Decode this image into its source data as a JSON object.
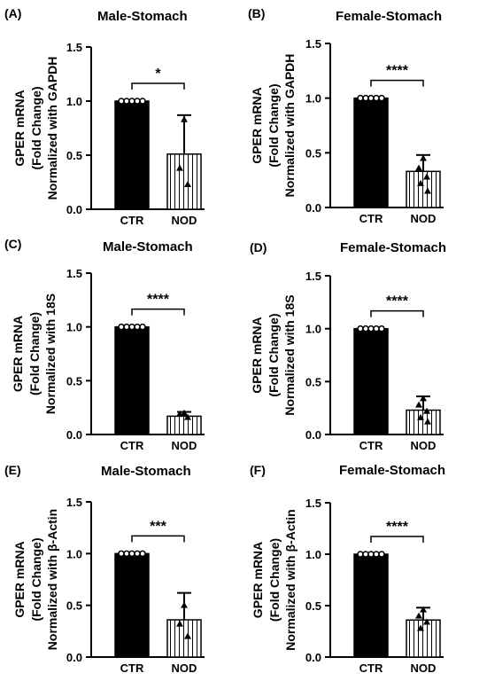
{
  "chart_data": [
    {
      "type": "bar",
      "panel": "(A)",
      "title": "Male-Stomach",
      "ylabel": [
        "GPER mRNA",
        "(Fold Change)",
        "Normalized with GAPDH"
      ],
      "categories": [
        "CTR",
        "NOD"
      ],
      "values": [
        1.0,
        0.51
      ],
      "error": [
        0.0,
        0.36
      ],
      "points": [
        [
          1.0,
          1.0,
          1.0,
          1.0,
          1.0
        ],
        [
          0.83,
          0.38,
          0.23
        ]
      ],
      "significance": "*",
      "ylim": [
        0,
        1.5
      ],
      "yticks": [
        "0.0",
        "0.5",
        "1.0",
        "1.5"
      ]
    },
    {
      "type": "bar",
      "panel": "(B)",
      "title": "Female-Stomach",
      "ylabel": [
        "GPER mRNA",
        "(Fold Change)",
        "Normalized with GAPDH"
      ],
      "categories": [
        "CTR",
        "NOD"
      ],
      "values": [
        1.0,
        0.33
      ],
      "error": [
        0.0,
        0.15
      ],
      "points": [
        [
          1.0,
          1.0,
          1.0,
          1.0,
          1.0
        ],
        [
          0.45,
          0.36,
          0.28,
          0.22,
          0.15
        ]
      ],
      "significance": "****",
      "ylim": [
        0,
        1.5
      ],
      "yticks": [
        "0.0",
        "0.5",
        "1.0",
        "1.5"
      ]
    },
    {
      "type": "bar",
      "panel": "(C)",
      "title": "Male-Stomach",
      "ylabel": [
        "GPER mRNA",
        "(Fold Change)",
        "Normalized with 18S"
      ],
      "categories": [
        "CTR",
        "NOD"
      ],
      "values": [
        1.0,
        0.17
      ],
      "error": [
        0.0,
        0.04
      ],
      "points": [
        [
          1.0,
          1.0,
          1.0,
          1.0,
          1.0
        ],
        [
          0.2,
          0.19,
          0.16
        ]
      ],
      "significance": "****",
      "ylim": [
        0,
        1.5
      ],
      "yticks": [
        "0.0",
        "0.5",
        "1.0",
        "1.5"
      ]
    },
    {
      "type": "bar",
      "panel": "(D)",
      "title": "Female-Stomach",
      "ylabel": [
        "GPER mRNA",
        "(Fold Change)",
        "Normalized with 18S"
      ],
      "categories": [
        "CTR",
        "NOD"
      ],
      "values": [
        1.0,
        0.23
      ],
      "error": [
        0.0,
        0.13
      ],
      "points": [
        [
          1.0,
          1.0,
          1.0,
          1.0,
          1.0
        ],
        [
          0.34,
          0.28,
          0.22,
          0.16,
          0.12
        ]
      ],
      "significance": "****",
      "ylim": [
        0,
        1.5
      ],
      "yticks": [
        "0.0",
        "0.5",
        "1.0",
        "1.5"
      ]
    },
    {
      "type": "bar",
      "panel": "(E)",
      "title": "Male-Stomach",
      "ylabel": [
        "GPER mRNA",
        "(Fold Change)",
        "Normalized with β-Actin"
      ],
      "categories": [
        "CTR",
        "NOD"
      ],
      "values": [
        1.0,
        0.36
      ],
      "error": [
        0.0,
        0.26
      ],
      "points": [
        [
          1.0,
          1.0,
          1.0,
          1.0,
          1.0
        ],
        [
          0.5,
          0.32,
          0.2
        ]
      ],
      "significance": "***",
      "ylim": [
        0,
        1.5
      ],
      "yticks": [
        "0.0",
        "0.5",
        "1.0",
        "1.5"
      ]
    },
    {
      "type": "bar",
      "panel": "(F)",
      "title": "Female-Stomach",
      "ylabel": [
        "GPER mRNA",
        "(Fold Change)",
        "Normalized with β-Actin"
      ],
      "categories": [
        "CTR",
        "NOD"
      ],
      "values": [
        1.0,
        0.36
      ],
      "error": [
        0.0,
        0.12
      ],
      "points": [
        [
          1.0,
          1.0,
          1.0,
          1.0,
          1.0
        ],
        [
          0.46,
          0.4,
          0.34,
          0.28
        ]
      ],
      "significance": "****",
      "ylim": [
        0,
        1.5
      ],
      "yticks": [
        "0.0",
        "0.5",
        "1.0",
        "1.5"
      ]
    }
  ]
}
